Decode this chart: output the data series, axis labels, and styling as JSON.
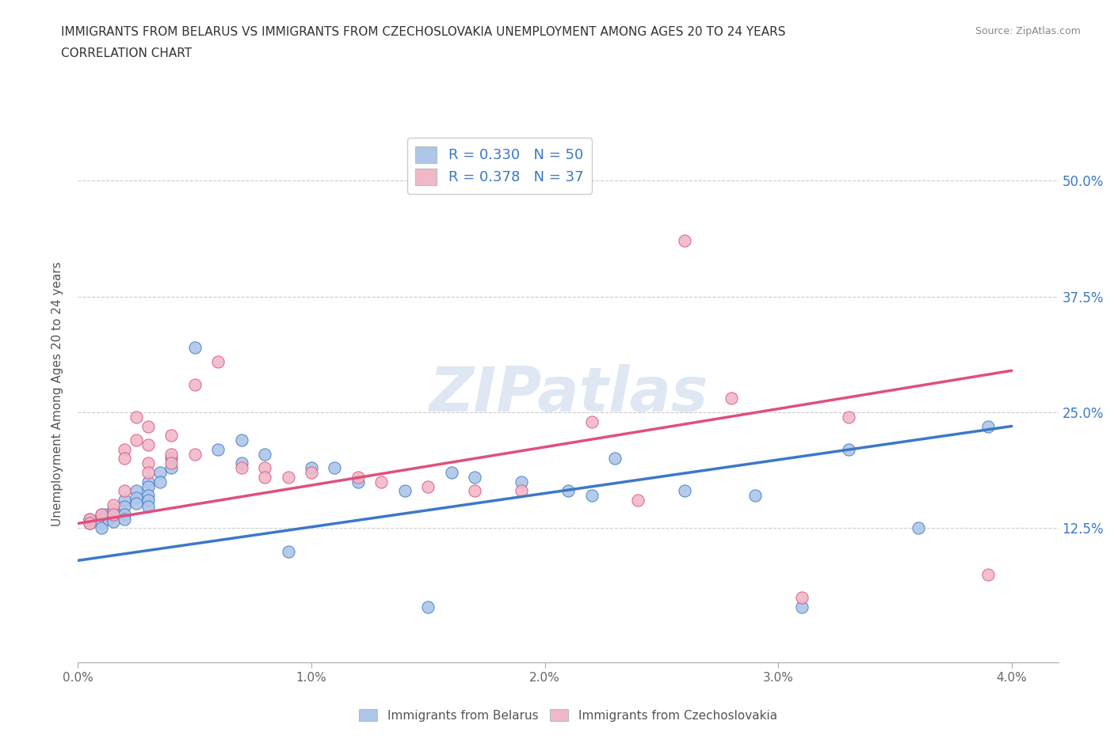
{
  "title_line1": "IMMIGRANTS FROM BELARUS VS IMMIGRANTS FROM CZECHOSLOVAKIA UNEMPLOYMENT AMONG AGES 20 TO 24 YEARS",
  "title_line2": "CORRELATION CHART",
  "source": "Source: ZipAtlas.com",
  "ylabel": "Unemployment Among Ages 20 to 24 years",
  "legend_label_blue": "Immigrants from Belarus",
  "legend_label_pink": "Immigrants from Czechoslovakia",
  "R_blue": 0.33,
  "N_blue": 50,
  "R_pink": 0.378,
  "N_pink": 37,
  "color_blue": "#aec6e8",
  "color_pink": "#f0b8c8",
  "line_color_blue": "#3c78c8",
  "line_color_pink": "#e0507a",
  "xlim": [
    0.0,
    0.042
  ],
  "ylim": [
    -0.02,
    0.56
  ],
  "xtick_labels": [
    "0.0%",
    "1.0%",
    "2.0%",
    "3.0%",
    "4.0%"
  ],
  "xtick_vals": [
    0.0,
    0.01,
    0.02,
    0.03,
    0.04
  ],
  "ytick_labels": [
    "12.5%",
    "25.0%",
    "37.5%",
    "50.0%"
  ],
  "ytick_vals": [
    0.125,
    0.25,
    0.375,
    0.5
  ],
  "watermark": "ZIPatlas",
  "blue_scatter": [
    [
      0.0005,
      0.135
    ],
    [
      0.0005,
      0.13
    ],
    [
      0.001,
      0.14
    ],
    [
      0.001,
      0.135
    ],
    [
      0.001,
      0.13
    ],
    [
      0.001,
      0.125
    ],
    [
      0.0012,
      0.14
    ],
    [
      0.0013,
      0.135
    ],
    [
      0.0015,
      0.145
    ],
    [
      0.0015,
      0.138
    ],
    [
      0.0015,
      0.132
    ],
    [
      0.002,
      0.155
    ],
    [
      0.002,
      0.148
    ],
    [
      0.002,
      0.14
    ],
    [
      0.002,
      0.135
    ],
    [
      0.0025,
      0.165
    ],
    [
      0.0025,
      0.158
    ],
    [
      0.0025,
      0.152
    ],
    [
      0.003,
      0.175
    ],
    [
      0.003,
      0.17
    ],
    [
      0.003,
      0.16
    ],
    [
      0.003,
      0.155
    ],
    [
      0.003,
      0.148
    ],
    [
      0.0035,
      0.185
    ],
    [
      0.0035,
      0.175
    ],
    [
      0.004,
      0.2
    ],
    [
      0.004,
      0.19
    ],
    [
      0.005,
      0.32
    ],
    [
      0.006,
      0.21
    ],
    [
      0.007,
      0.22
    ],
    [
      0.007,
      0.195
    ],
    [
      0.008,
      0.205
    ],
    [
      0.009,
      0.1
    ],
    [
      0.01,
      0.19
    ],
    [
      0.011,
      0.19
    ],
    [
      0.012,
      0.175
    ],
    [
      0.014,
      0.165
    ],
    [
      0.015,
      0.04
    ],
    [
      0.016,
      0.185
    ],
    [
      0.017,
      0.18
    ],
    [
      0.019,
      0.175
    ],
    [
      0.021,
      0.165
    ],
    [
      0.022,
      0.16
    ],
    [
      0.023,
      0.2
    ],
    [
      0.026,
      0.165
    ],
    [
      0.029,
      0.16
    ],
    [
      0.031,
      0.04
    ],
    [
      0.033,
      0.21
    ],
    [
      0.036,
      0.125
    ],
    [
      0.039,
      0.235
    ]
  ],
  "pink_scatter": [
    [
      0.0005,
      0.135
    ],
    [
      0.0005,
      0.13
    ],
    [
      0.001,
      0.14
    ],
    [
      0.0015,
      0.15
    ],
    [
      0.0015,
      0.14
    ],
    [
      0.002,
      0.21
    ],
    [
      0.002,
      0.2
    ],
    [
      0.002,
      0.165
    ],
    [
      0.0025,
      0.245
    ],
    [
      0.0025,
      0.22
    ],
    [
      0.003,
      0.235
    ],
    [
      0.003,
      0.215
    ],
    [
      0.003,
      0.195
    ],
    [
      0.003,
      0.185
    ],
    [
      0.004,
      0.225
    ],
    [
      0.004,
      0.205
    ],
    [
      0.004,
      0.195
    ],
    [
      0.005,
      0.205
    ],
    [
      0.005,
      0.28
    ],
    [
      0.006,
      0.305
    ],
    [
      0.007,
      0.19
    ],
    [
      0.008,
      0.19
    ],
    [
      0.008,
      0.18
    ],
    [
      0.009,
      0.18
    ],
    [
      0.01,
      0.185
    ],
    [
      0.012,
      0.18
    ],
    [
      0.013,
      0.175
    ],
    [
      0.015,
      0.17
    ],
    [
      0.017,
      0.165
    ],
    [
      0.019,
      0.165
    ],
    [
      0.022,
      0.24
    ],
    [
      0.024,
      0.155
    ],
    [
      0.026,
      0.435
    ],
    [
      0.028,
      0.265
    ],
    [
      0.031,
      0.05
    ],
    [
      0.033,
      0.245
    ],
    [
      0.039,
      0.075
    ]
  ],
  "blue_line_x": [
    0.0,
    0.04
  ],
  "blue_line_y": [
    0.09,
    0.235
  ],
  "pink_line_x": [
    0.0,
    0.04
  ],
  "pink_line_y": [
    0.13,
    0.295
  ]
}
